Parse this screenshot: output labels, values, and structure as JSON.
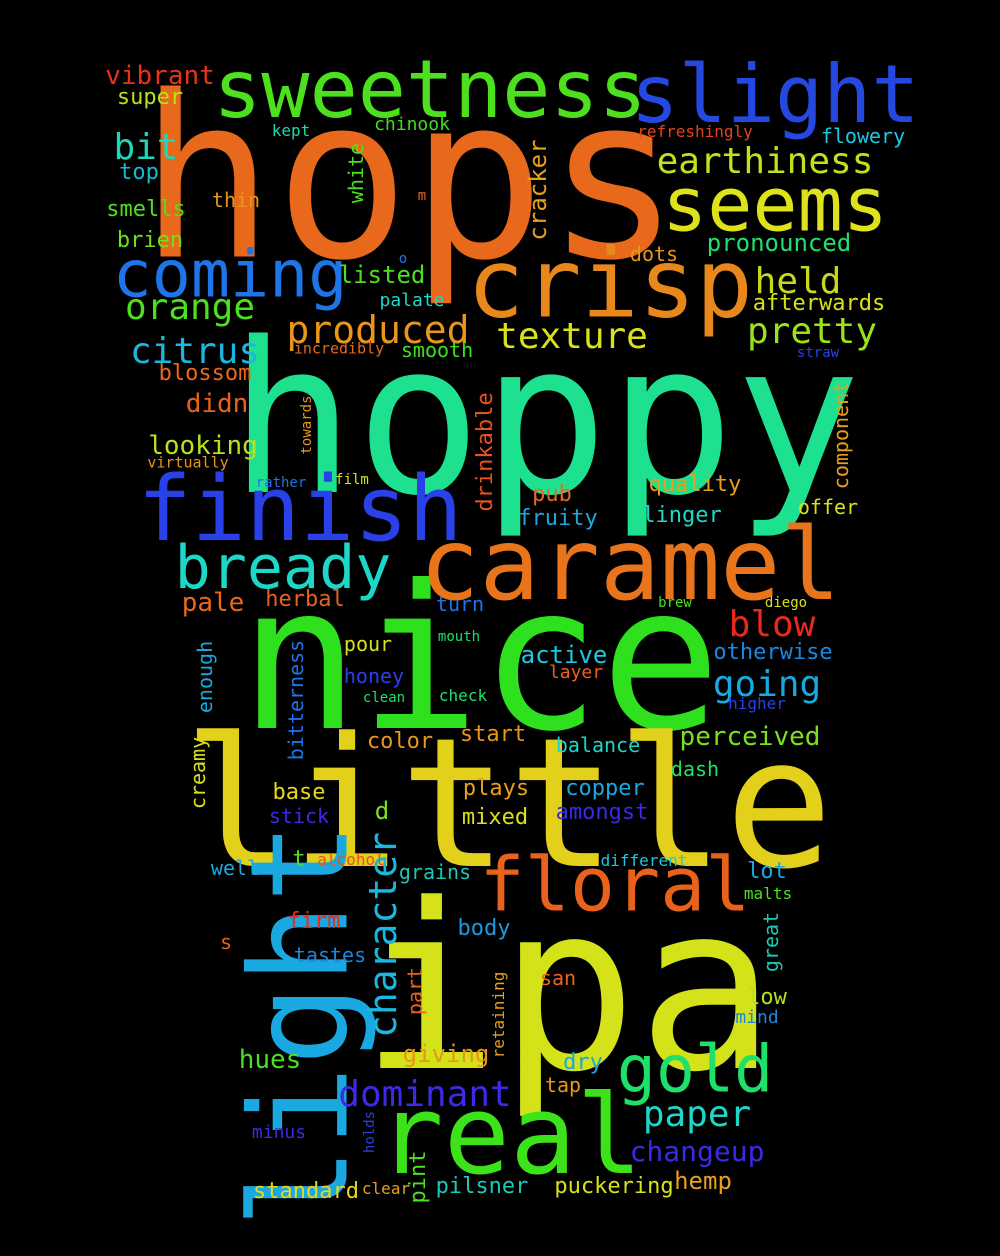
{
  "words": [
    {
      "text": "hops",
      "color": "#e8681c"
    },
    {
      "text": "hoppy",
      "color": "#1ee18f"
    },
    {
      "text": "nice",
      "color": "#2ee01e"
    },
    {
      "text": "little",
      "color": "#e3d01a"
    },
    {
      "text": "ipa",
      "color": "#d4e21a"
    },
    {
      "text": "light",
      "color": "#19a8e0"
    },
    {
      "text": "real",
      "color": "#3de31a"
    },
    {
      "text": "caramel",
      "color": "#e8751c"
    },
    {
      "text": "finish",
      "color": "#2a40e8"
    },
    {
      "text": "crisp",
      "color": "#e8881c"
    },
    {
      "text": "sweetness",
      "color": "#4ce01e"
    },
    {
      "text": "slight",
      "color": "#2448e0"
    },
    {
      "text": "seems",
      "color": "#dde21a"
    },
    {
      "text": "coming",
      "color": "#1f74e8"
    },
    {
      "text": "bready",
      "color": "#1dd8c8"
    },
    {
      "text": "floral",
      "color": "#e8621c"
    },
    {
      "text": "gold",
      "color": "#1ee06a"
    },
    {
      "text": "earthiness",
      "color": "#c0e21a"
    },
    {
      "text": "orange",
      "color": "#4ce01e"
    },
    {
      "text": "produced",
      "color": "#e8961c"
    },
    {
      "text": "held",
      "color": "#c8d81a"
    },
    {
      "text": "pretty",
      "color": "#9ce21a"
    },
    {
      "text": "texture",
      "color": "#d8e21a"
    },
    {
      "text": "citrus",
      "color": "#1ab8e0"
    },
    {
      "text": "bit",
      "color": "#1dd8b8"
    },
    {
      "text": "character",
      "color": "#19b8e0"
    },
    {
      "text": "dominant",
      "color": "#3d2ae8"
    },
    {
      "text": "paper",
      "color": "#1dd8c8"
    },
    {
      "text": "going",
      "color": "#19a8e0"
    },
    {
      "text": "blow",
      "color": "#e82a1c"
    },
    {
      "text": "changeup",
      "color": "#3a2ae8"
    },
    {
      "text": "vibrant",
      "color": "#e8321c"
    },
    {
      "text": "super",
      "color": "#b8e21a"
    },
    {
      "text": "top",
      "color": "#1ab8d0"
    },
    {
      "text": "smells",
      "color": "#4ce01e"
    },
    {
      "text": "brien",
      "color": "#6ce01e"
    },
    {
      "text": "kept",
      "color": "#1dd8a8"
    },
    {
      "text": "chinook",
      "color": "#3de01e"
    },
    {
      "text": "refreshingly",
      "color": "#e8421c"
    },
    {
      "text": "flowery",
      "color": "#1dc8e0"
    },
    {
      "text": "thin",
      "color": "#e8961c"
    },
    {
      "text": "white",
      "color": "#4ce01e"
    },
    {
      "text": "cracker",
      "color": "#e8a01c"
    },
    {
      "text": "m",
      "color": "#e8681c"
    },
    {
      "text": "o",
      "color": "#1f74e8"
    },
    {
      "text": "dots",
      "color": "#e8961c"
    },
    {
      "text": "pronounced",
      "color": "#1ee06a"
    },
    {
      "text": "listed",
      "color": "#4ce01e"
    },
    {
      "text": "afterwards",
      "color": "#d8e21a"
    },
    {
      "text": "palate",
      "color": "#1dd8c8"
    },
    {
      "text": "incredibly",
      "color": "#e8681c"
    },
    {
      "text": "smooth",
      "color": "#3de01e"
    },
    {
      "text": "straw",
      "color": "#2a40e8"
    },
    {
      "text": "blossom",
      "color": "#e8681c"
    },
    {
      "text": "didn",
      "color": "#e8621c"
    },
    {
      "text": "towards",
      "color": "#e8961c"
    },
    {
      "text": "drinkable",
      "color": "#e8521c"
    },
    {
      "text": "component",
      "color": "#e8a01c"
    },
    {
      "text": "looking",
      "color": "#b8e21a"
    },
    {
      "text": "virtually",
      "color": "#e8961c"
    },
    {
      "text": "rather",
      "color": "#1f74e8"
    },
    {
      "text": "film",
      "color": "#d8e21a"
    },
    {
      "text": "quality",
      "color": "#e8a01c"
    },
    {
      "text": "pub",
      "color": "#e8681c"
    },
    {
      "text": "offer",
      "color": "#d8e21a"
    },
    {
      "text": "fruity",
      "color": "#1aa8e0"
    },
    {
      "text": "linger",
      "color": "#1dd8c8"
    },
    {
      "text": "pale",
      "color": "#e8681c"
    },
    {
      "text": "herbal",
      "color": "#e8621c"
    },
    {
      "text": "turn",
      "color": "#1f74e8"
    },
    {
      "text": "brew",
      "color": "#4ce01e"
    },
    {
      "text": "diego",
      "color": "#d8e21a"
    },
    {
      "text": "enough",
      "color": "#19a8e0"
    },
    {
      "text": "pour",
      "color": "#d8e21a"
    },
    {
      "text": "mouth",
      "color": "#1ee06a"
    },
    {
      "text": "honey",
      "color": "#2a40e8"
    },
    {
      "text": "active",
      "color": "#1dc8e0"
    },
    {
      "text": "otherwise",
      "color": "#1a88e0"
    },
    {
      "text": "layer",
      "color": "#e8621c"
    },
    {
      "text": "bitterness",
      "color": "#1f74e8"
    },
    {
      "text": "clean",
      "color": "#1ee06a"
    },
    {
      "text": "check",
      "color": "#1ee06a"
    },
    {
      "text": "higher",
      "color": "#2a40e8"
    },
    {
      "text": "creamy",
      "color": "#d8e21a"
    },
    {
      "text": "color",
      "color": "#e8961c"
    },
    {
      "text": "start",
      "color": "#e8961c"
    },
    {
      "text": "balance",
      "color": "#1dd8c8"
    },
    {
      "text": "perceived",
      "color": "#7ce01e"
    },
    {
      "text": "dash",
      "color": "#1ee06a"
    },
    {
      "text": "base",
      "color": "#e8d81a"
    },
    {
      "text": "plays",
      "color": "#e8a01c"
    },
    {
      "text": "copper",
      "color": "#1aa8e0"
    },
    {
      "text": "d",
      "color": "#7ce01e"
    },
    {
      "text": "stick",
      "color": "#3a2ae8"
    },
    {
      "text": "mixed",
      "color": "#d8e21a"
    },
    {
      "text": "amongst",
      "color": "#3a2ae8"
    },
    {
      "text": "well",
      "color": "#1aa8e0"
    },
    {
      "text": "t",
      "color": "#4ce01e"
    },
    {
      "text": "alcohol",
      "color": "#e8521c"
    },
    {
      "text": "different",
      "color": "#1dc8e0"
    },
    {
      "text": "lot",
      "color": "#1aa8e0"
    },
    {
      "text": "grains",
      "color": "#1dc8b8"
    },
    {
      "text": "malts",
      "color": "#4ce01e"
    },
    {
      "text": "firm",
      "color": "#e82a1c"
    },
    {
      "text": "body",
      "color": "#1a98e0"
    },
    {
      "text": "great",
      "color": "#1dc8b8"
    },
    {
      "text": "s",
      "color": "#e8621c"
    },
    {
      "text": "tastes",
      "color": "#1a88e0"
    },
    {
      "text": "part",
      "color": "#e8621c"
    },
    {
      "text": "retaining",
      "color": "#e8a01c"
    },
    {
      "text": "san",
      "color": "#e8681c"
    },
    {
      "text": "low",
      "color": "#b8e21a"
    },
    {
      "text": "mind",
      "color": "#1a88e0"
    },
    {
      "text": "hues",
      "color": "#4ce01e"
    },
    {
      "text": "giving",
      "color": "#e8961c"
    },
    {
      "text": "dry",
      "color": "#1aa8e0"
    },
    {
      "text": "tap",
      "color": "#e8961c"
    },
    {
      "text": "holds",
      "color": "#2a40e8"
    },
    {
      "text": "minus",
      "color": "#3a2ae8"
    },
    {
      "text": "pint",
      "color": "#4ce01e"
    },
    {
      "text": "hemp",
      "color": "#e8a01c"
    },
    {
      "text": "standard",
      "color": "#e8d81a"
    },
    {
      "text": "clear",
      "color": "#e8a01c"
    },
    {
      "text": "pilsner",
      "color": "#1dc8b8"
    },
    {
      "text": "puckering",
      "color": "#d8e21a"
    }
  ]
}
